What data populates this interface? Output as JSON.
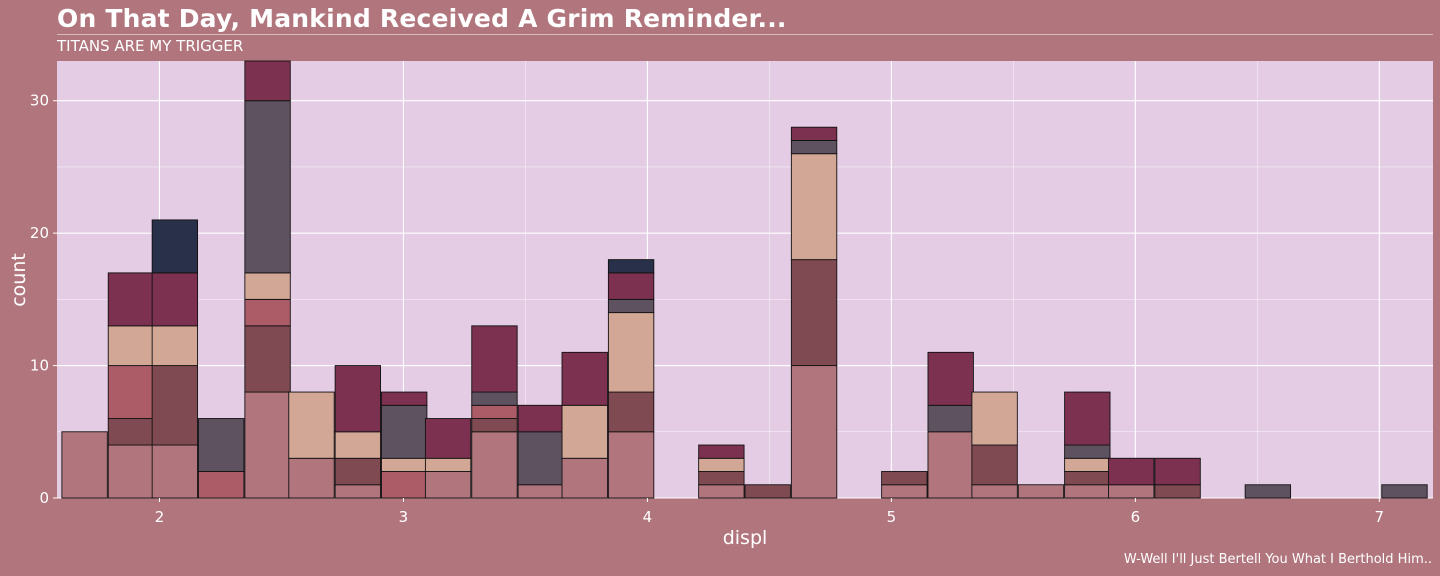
{
  "title": "On That Day, Mankind Received A Grim Reminder...",
  "subtitle": "TITANS ARE MY TRIGGER",
  "caption": "W-Well I'll Just Bertell You What I Berthold Him..",
  "colors": {
    "background": "#b1767d",
    "panel": "#e4cde4",
    "grid": "#ffffff",
    "text": "#ffffff",
    "bar_border": "#111111"
  },
  "chart_data": {
    "type": "bar",
    "stacked": true,
    "xlabel": "displ",
    "ylabel": "count",
    "xlim": [
      1.58,
      7.22
    ],
    "ylim": [
      0,
      33
    ],
    "xticks": [
      2,
      3,
      4,
      5,
      6,
      7
    ],
    "yticks": [
      0,
      10,
      20,
      30
    ],
    "grid": true,
    "legend": "none",
    "bin_width": 0.1862,
    "segment_colors": [
      "#b1767d",
      "#804a52",
      "#ac5c67",
      "#d3a795",
      "#5f5260",
      "#7d3150",
      "#293049"
    ],
    "bins": [
      {
        "x": 1.6,
        "counts": [
          5,
          0,
          0,
          0,
          0,
          0,
          0
        ]
      },
      {
        "x": 1.79,
        "counts": [
          4,
          2,
          4,
          3,
          0,
          4,
          0
        ]
      },
      {
        "x": 1.97,
        "counts": [
          4,
          6,
          0,
          3,
          0,
          4,
          4
        ]
      },
      {
        "x": 2.16,
        "counts": [
          0,
          0,
          2,
          0,
          4,
          0,
          0
        ]
      },
      {
        "x": 2.35,
        "counts": [
          8,
          5,
          2,
          2,
          13,
          3,
          0
        ]
      },
      {
        "x": 2.53,
        "counts": [
          3,
          0,
          0,
          5,
          0,
          0,
          0
        ]
      },
      {
        "x": 2.72,
        "counts": [
          1,
          2,
          0,
          2,
          0,
          5,
          0
        ]
      },
      {
        "x": 2.91,
        "counts": [
          0,
          0,
          2,
          1,
          4,
          1,
          0
        ]
      },
      {
        "x": 3.09,
        "counts": [
          2,
          0,
          0,
          1,
          0,
          3,
          0
        ]
      },
      {
        "x": 3.28,
        "counts": [
          5,
          1,
          1,
          0,
          1,
          5,
          0
        ]
      },
      {
        "x": 3.47,
        "counts": [
          1,
          0,
          0,
          0,
          4,
          2,
          0
        ]
      },
      {
        "x": 3.65,
        "counts": [
          3,
          0,
          0,
          4,
          0,
          4,
          0
        ]
      },
      {
        "x": 3.84,
        "counts": [
          5,
          3,
          0,
          6,
          1,
          2,
          1
        ]
      },
      {
        "x": 4.03,
        "counts": [
          0,
          0,
          0,
          0,
          0,
          0,
          0
        ]
      },
      {
        "x": 4.21,
        "counts": [
          1,
          1,
          0,
          1,
          0,
          1,
          0
        ]
      },
      {
        "x": 4.4,
        "counts": [
          0,
          1,
          0,
          0,
          0,
          0,
          0
        ]
      },
      {
        "x": 4.59,
        "counts": [
          10,
          8,
          0,
          8,
          1,
          1,
          0
        ]
      },
      {
        "x": 4.77,
        "counts": [
          0,
          0,
          0,
          0,
          0,
          0,
          0
        ]
      },
      {
        "x": 4.96,
        "counts": [
          1,
          1,
          0,
          0,
          0,
          0,
          0
        ]
      },
      {
        "x": 5.15,
        "counts": [
          5,
          0,
          0,
          0,
          2,
          4,
          0
        ]
      },
      {
        "x": 5.33,
        "counts": [
          1,
          3,
          0,
          4,
          0,
          0,
          0
        ]
      },
      {
        "x": 5.52,
        "counts": [
          1,
          0,
          0,
          0,
          0,
          0,
          0
        ]
      },
      {
        "x": 5.71,
        "counts": [
          1,
          1,
          0,
          1,
          1,
          4,
          0
        ]
      },
      {
        "x": 5.89,
        "counts": [
          1,
          0,
          0,
          0,
          0,
          2,
          0
        ]
      },
      {
        "x": 6.08,
        "counts": [
          0,
          1,
          0,
          0,
          0,
          2,
          0
        ]
      },
      {
        "x": 6.27,
        "counts": [
          0,
          0,
          0,
          0,
          0,
          0,
          0
        ]
      },
      {
        "x": 6.45,
        "counts": [
          0,
          0,
          0,
          0,
          1,
          0,
          0
        ]
      },
      {
        "x": 6.64,
        "counts": [
          0,
          0,
          0,
          0,
          0,
          0,
          0
        ]
      },
      {
        "x": 6.83,
        "counts": [
          0,
          0,
          0,
          0,
          0,
          0,
          0
        ]
      },
      {
        "x": 7.01,
        "counts": [
          0,
          0,
          0,
          0,
          1,
          0,
          0
        ]
      }
    ]
  }
}
